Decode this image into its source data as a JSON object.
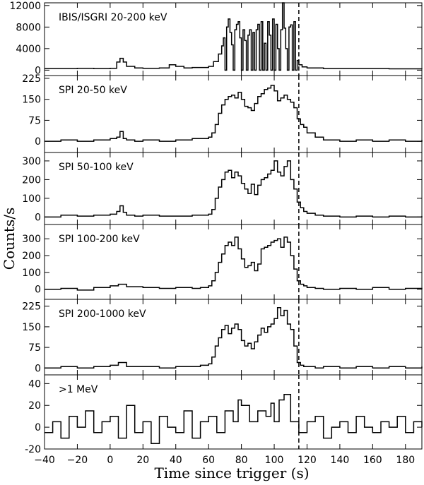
{
  "chart_data": {
    "type": "line",
    "style": "step histogram",
    "xlabel": "Time since trigger (s)",
    "ylabel": "Counts/s",
    "xlim": [
      -40,
      190
    ],
    "xticks": [
      -40,
      -20,
      0,
      20,
      40,
      60,
      80,
      100,
      120,
      140,
      160,
      180
    ],
    "vline": 115,
    "grid": false,
    "colors": {
      "line": "#000000",
      "background": "#ffffff"
    },
    "panels": [
      {
        "name": "IBIS/ISGRI 20-200 keV",
        "ylim": [
          -1000,
          12500
        ],
        "yticks": [
          0,
          4000,
          8000,
          12000
        ],
        "x": [
          -40,
          -30,
          -20,
          -10,
          0,
          4,
          6,
          8,
          10,
          15,
          20,
          30,
          36,
          40,
          45,
          50,
          55,
          60,
          63,
          66,
          68,
          69,
          70,
          71,
          72,
          73,
          74,
          75,
          76,
          77,
          78,
          79,
          80,
          81,
          82,
          83,
          84,
          85,
          86,
          87,
          88,
          89,
          90,
          91,
          92,
          93,
          94,
          95,
          96,
          97,
          98,
          99,
          100,
          101,
          102,
          103,
          104,
          105,
          106,
          107,
          108,
          109,
          110,
          111,
          112,
          113,
          114,
          115,
          117,
          120,
          130,
          150,
          170,
          190
        ],
        "values": [
          300,
          300,
          350,
          300,
          350,
          1500,
          2200,
          1500,
          700,
          400,
          350,
          400,
          1000,
          700,
          400,
          500,
          500,
          700,
          1600,
          3000,
          4500,
          6000,
          0,
          8000,
          9500,
          7000,
          4700,
          0,
          7500,
          8500,
          9000,
          6000,
          0,
          7500,
          5500,
          0,
          6500,
          7500,
          0,
          7000,
          0,
          7500,
          8500,
          0,
          9000,
          0,
          5000,
          0,
          9000,
          6500,
          0,
          9500,
          0,
          8500,
          4000,
          0,
          7500,
          12500,
          7800,
          4000,
          0,
          8000,
          8400,
          0,
          9000,
          0,
          1800,
          1000,
          600,
          400,
          300,
          300,
          250,
          200
        ]
      },
      {
        "name": "SPI 20-50 keV",
        "ylim": [
          -40,
          235
        ],
        "yticks": [
          0,
          75,
          150,
          225
        ],
        "x": [
          -40,
          -30,
          -20,
          -10,
          0,
          4,
          6,
          8,
          10,
          15,
          20,
          30,
          40,
          50,
          55,
          60,
          62,
          64,
          66,
          68,
          70,
          72,
          74,
          76,
          78,
          80,
          82,
          84,
          86,
          88,
          90,
          92,
          94,
          96,
          98,
          100,
          102,
          104,
          106,
          108,
          110,
          112,
          114,
          116,
          118,
          120,
          125,
          130,
          140,
          150,
          160,
          170,
          180,
          190
        ],
        "values": [
          0,
          5,
          0,
          5,
          10,
          15,
          35,
          10,
          5,
          0,
          5,
          0,
          5,
          10,
          10,
          15,
          30,
          60,
          100,
          130,
          150,
          160,
          165,
          155,
          175,
          150,
          125,
          120,
          110,
          135,
          160,
          170,
          185,
          190,
          200,
          180,
          145,
          155,
          165,
          150,
          140,
          120,
          80,
          60,
          50,
          30,
          15,
          5,
          0,
          5,
          0,
          5,
          0,
          5
        ]
      },
      {
        "name": "SPI 50-100 keV",
        "ylim": [
          -40,
          345
        ],
        "yticks": [
          0,
          100,
          200,
          300
        ],
        "x": [
          -40,
          -30,
          -20,
          -10,
          0,
          4,
          6,
          8,
          10,
          15,
          20,
          30,
          40,
          50,
          55,
          60,
          62,
          64,
          66,
          68,
          70,
          72,
          74,
          76,
          78,
          80,
          82,
          84,
          86,
          88,
          90,
          92,
          94,
          96,
          98,
          100,
          102,
          104,
          106,
          108,
          110,
          112,
          114,
          116,
          118,
          120,
          125,
          130,
          140,
          150,
          160,
          170,
          180,
          190
        ],
        "values": [
          0,
          10,
          5,
          10,
          15,
          30,
          60,
          25,
          10,
          5,
          10,
          5,
          5,
          10,
          10,
          15,
          40,
          100,
          160,
          200,
          240,
          250,
          210,
          240,
          220,
          180,
          150,
          125,
          175,
          120,
          170,
          200,
          210,
          230,
          250,
          300,
          240,
          220,
          270,
          300,
          200,
          150,
          80,
          50,
          30,
          20,
          10,
          5,
          0,
          5,
          0,
          5,
          0,
          5
        ]
      },
      {
        "name": "SPI 100-200 keV",
        "ylim": [
          -60,
          385
        ],
        "yticks": [
          0,
          100,
          200,
          300
        ],
        "x": [
          -40,
          -30,
          -20,
          -10,
          0,
          5,
          10,
          20,
          30,
          40,
          50,
          55,
          60,
          62,
          64,
          66,
          68,
          70,
          72,
          74,
          76,
          78,
          80,
          82,
          84,
          86,
          88,
          90,
          92,
          94,
          96,
          98,
          100,
          102,
          104,
          106,
          108,
          110,
          112,
          114,
          116,
          118,
          120,
          125,
          130,
          140,
          150,
          160,
          170,
          180,
          190
        ],
        "values": [
          0,
          5,
          -5,
          10,
          20,
          30,
          15,
          10,
          5,
          10,
          5,
          10,
          20,
          50,
          100,
          160,
          210,
          260,
          280,
          260,
          310,
          240,
          180,
          130,
          140,
          160,
          110,
          150,
          240,
          250,
          260,
          280,
          290,
          300,
          250,
          310,
          280,
          200,
          120,
          50,
          30,
          20,
          10,
          5,
          0,
          5,
          0,
          10,
          0,
          5,
          0
        ]
      },
      {
        "name": "SPI 200-1000 keV",
        "ylim": [
          -25,
          250
        ],
        "yticks": [
          0,
          75,
          150,
          225
        ],
        "x": [
          -40,
          -30,
          -20,
          -10,
          0,
          5,
          10,
          20,
          30,
          40,
          50,
          55,
          60,
          62,
          64,
          66,
          68,
          70,
          72,
          74,
          76,
          78,
          80,
          82,
          84,
          86,
          88,
          90,
          92,
          94,
          96,
          98,
          100,
          102,
          104,
          106,
          108,
          110,
          112,
          114,
          116,
          118,
          120,
          125,
          130,
          140,
          150,
          160,
          170,
          180,
          190
        ],
        "values": [
          0,
          5,
          0,
          5,
          10,
          20,
          5,
          5,
          0,
          5,
          5,
          10,
          15,
          40,
          80,
          110,
          140,
          155,
          125,
          145,
          160,
          140,
          100,
          80,
          90,
          70,
          95,
          120,
          145,
          130,
          150,
          160,
          180,
          220,
          190,
          210,
          160,
          140,
          80,
          20,
          10,
          5,
          5,
          0,
          5,
          0,
          5,
          0,
          5,
          0,
          5
        ]
      },
      {
        "name": ">1 MeV",
        "ylim": [
          -20,
          48
        ],
        "yticks": [
          -20,
          0,
          20,
          40
        ],
        "x": [
          -40,
          -35,
          -30,
          -25,
          -20,
          -15,
          -10,
          -5,
          0,
          5,
          10,
          15,
          20,
          25,
          30,
          35,
          40,
          45,
          50,
          55,
          60,
          65,
          70,
          75,
          78,
          80,
          85,
          90,
          95,
          98,
          100,
          103,
          106,
          110,
          115,
          120,
          125,
          130,
          135,
          140,
          145,
          150,
          155,
          160,
          165,
          170,
          175,
          180,
          185,
          190
        ],
        "values": [
          -5,
          5,
          -10,
          10,
          0,
          15,
          -5,
          5,
          10,
          -10,
          20,
          -5,
          5,
          -15,
          10,
          0,
          -5,
          15,
          -10,
          5,
          10,
          -5,
          15,
          5,
          25,
          20,
          5,
          15,
          10,
          22,
          5,
          25,
          30,
          5,
          -5,
          5,
          10,
          -10,
          0,
          5,
          -5,
          10,
          0,
          -5,
          5,
          0,
          10,
          -5,
          5,
          0
        ]
      }
    ]
  }
}
